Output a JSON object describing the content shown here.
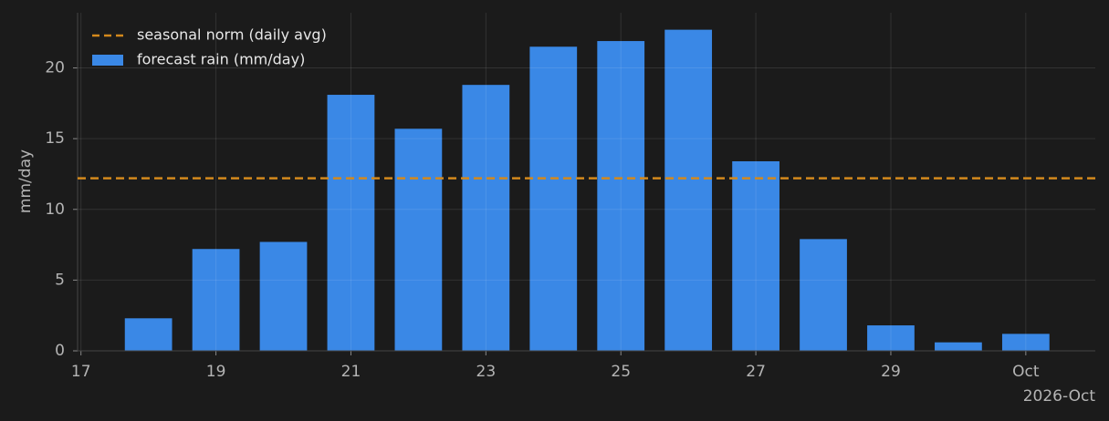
{
  "chart_data": {
    "type": "bar",
    "x": [
      18,
      19,
      20,
      21,
      22,
      23,
      24,
      25,
      26,
      27,
      28,
      29,
      30,
      31
    ],
    "series": [
      {
        "name": "forecast rain (mm/day)",
        "color": "#3a88e6",
        "values": [
          2.3,
          7.2,
          7.7,
          18.1,
          15.7,
          18.8,
          21.5,
          21.9,
          22.7,
          13.4,
          7.9,
          1.8,
          0.6,
          1.2
        ]
      }
    ],
    "reference_line": {
      "name": "seasonal norm (daily avg)",
      "value": 12.2,
      "color": "#d4891c",
      "style": "dashed"
    },
    "ylabel": "mm/day",
    "x_offset_label": "2026-Oct",
    "xlim": [
      16.95,
      32.03
    ],
    "xticks": [
      17,
      19,
      21,
      23,
      25,
      27,
      29,
      {
        "value": 31,
        "label": "Oct"
      }
    ],
    "ylim": [
      0,
      23.9
    ],
    "yticks": [
      0,
      5,
      10,
      15,
      20
    ],
    "grid": true,
    "legend": "upper left"
  }
}
